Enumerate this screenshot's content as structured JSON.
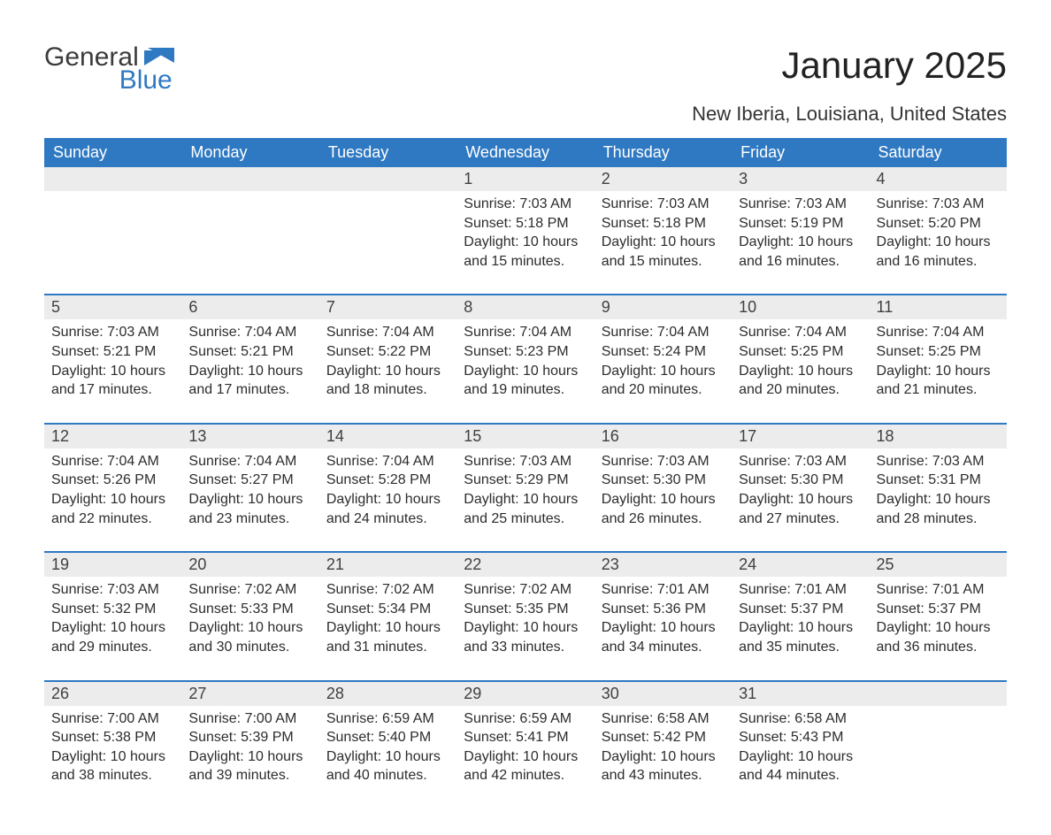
{
  "logo": {
    "word1": "General",
    "word2": "Blue"
  },
  "title": "January 2025",
  "location": "New Iberia, Louisiana, United States",
  "colors": {
    "header_bg": "#2f79c2",
    "header_text": "#ffffff",
    "daynum_bg": "#ececec",
    "rule": "#2f79c2",
    "logo_blue": "#2f79c2"
  },
  "calendar": {
    "columns": [
      "Sunday",
      "Monday",
      "Tuesday",
      "Wednesday",
      "Thursday",
      "Friday",
      "Saturday"
    ],
    "weeks": [
      [
        null,
        null,
        null,
        {
          "n": "1",
          "sunrise": "7:03 AM",
          "sunset": "5:18 PM",
          "daylight": "10 hours and 15 minutes."
        },
        {
          "n": "2",
          "sunrise": "7:03 AM",
          "sunset": "5:18 PM",
          "daylight": "10 hours and 15 minutes."
        },
        {
          "n": "3",
          "sunrise": "7:03 AM",
          "sunset": "5:19 PM",
          "daylight": "10 hours and 16 minutes."
        },
        {
          "n": "4",
          "sunrise": "7:03 AM",
          "sunset": "5:20 PM",
          "daylight": "10 hours and 16 minutes."
        }
      ],
      [
        {
          "n": "5",
          "sunrise": "7:03 AM",
          "sunset": "5:21 PM",
          "daylight": "10 hours and 17 minutes."
        },
        {
          "n": "6",
          "sunrise": "7:04 AM",
          "sunset": "5:21 PM",
          "daylight": "10 hours and 17 minutes."
        },
        {
          "n": "7",
          "sunrise": "7:04 AM",
          "sunset": "5:22 PM",
          "daylight": "10 hours and 18 minutes."
        },
        {
          "n": "8",
          "sunrise": "7:04 AM",
          "sunset": "5:23 PM",
          "daylight": "10 hours and 19 minutes."
        },
        {
          "n": "9",
          "sunrise": "7:04 AM",
          "sunset": "5:24 PM",
          "daylight": "10 hours and 20 minutes."
        },
        {
          "n": "10",
          "sunrise": "7:04 AM",
          "sunset": "5:25 PM",
          "daylight": "10 hours and 20 minutes."
        },
        {
          "n": "11",
          "sunrise": "7:04 AM",
          "sunset": "5:25 PM",
          "daylight": "10 hours and 21 minutes."
        }
      ],
      [
        {
          "n": "12",
          "sunrise": "7:04 AM",
          "sunset": "5:26 PM",
          "daylight": "10 hours and 22 minutes."
        },
        {
          "n": "13",
          "sunrise": "7:04 AM",
          "sunset": "5:27 PM",
          "daylight": "10 hours and 23 minutes."
        },
        {
          "n": "14",
          "sunrise": "7:04 AM",
          "sunset": "5:28 PM",
          "daylight": "10 hours and 24 minutes."
        },
        {
          "n": "15",
          "sunrise": "7:03 AM",
          "sunset": "5:29 PM",
          "daylight": "10 hours and 25 minutes."
        },
        {
          "n": "16",
          "sunrise": "7:03 AM",
          "sunset": "5:30 PM",
          "daylight": "10 hours and 26 minutes."
        },
        {
          "n": "17",
          "sunrise": "7:03 AM",
          "sunset": "5:30 PM",
          "daylight": "10 hours and 27 minutes."
        },
        {
          "n": "18",
          "sunrise": "7:03 AM",
          "sunset": "5:31 PM",
          "daylight": "10 hours and 28 minutes."
        }
      ],
      [
        {
          "n": "19",
          "sunrise": "7:03 AM",
          "sunset": "5:32 PM",
          "daylight": "10 hours and 29 minutes."
        },
        {
          "n": "20",
          "sunrise": "7:02 AM",
          "sunset": "5:33 PM",
          "daylight": "10 hours and 30 minutes."
        },
        {
          "n": "21",
          "sunrise": "7:02 AM",
          "sunset": "5:34 PM",
          "daylight": "10 hours and 31 minutes."
        },
        {
          "n": "22",
          "sunrise": "7:02 AM",
          "sunset": "5:35 PM",
          "daylight": "10 hours and 33 minutes."
        },
        {
          "n": "23",
          "sunrise": "7:01 AM",
          "sunset": "5:36 PM",
          "daylight": "10 hours and 34 minutes."
        },
        {
          "n": "24",
          "sunrise": "7:01 AM",
          "sunset": "5:37 PM",
          "daylight": "10 hours and 35 minutes."
        },
        {
          "n": "25",
          "sunrise": "7:01 AM",
          "sunset": "5:37 PM",
          "daylight": "10 hours and 36 minutes."
        }
      ],
      [
        {
          "n": "26",
          "sunrise": "7:00 AM",
          "sunset": "5:38 PM",
          "daylight": "10 hours and 38 minutes."
        },
        {
          "n": "27",
          "sunrise": "7:00 AM",
          "sunset": "5:39 PM",
          "daylight": "10 hours and 39 minutes."
        },
        {
          "n": "28",
          "sunrise": "6:59 AM",
          "sunset": "5:40 PM",
          "daylight": "10 hours and 40 minutes."
        },
        {
          "n": "29",
          "sunrise": "6:59 AM",
          "sunset": "5:41 PM",
          "daylight": "10 hours and 42 minutes."
        },
        {
          "n": "30",
          "sunrise": "6:58 AM",
          "sunset": "5:42 PM",
          "daylight": "10 hours and 43 minutes."
        },
        {
          "n": "31",
          "sunrise": "6:58 AM",
          "sunset": "5:43 PM",
          "daylight": "10 hours and 44 minutes."
        },
        null
      ]
    ]
  },
  "labels": {
    "sunrise": "Sunrise:",
    "sunset": "Sunset:",
    "daylight": "Daylight:"
  }
}
